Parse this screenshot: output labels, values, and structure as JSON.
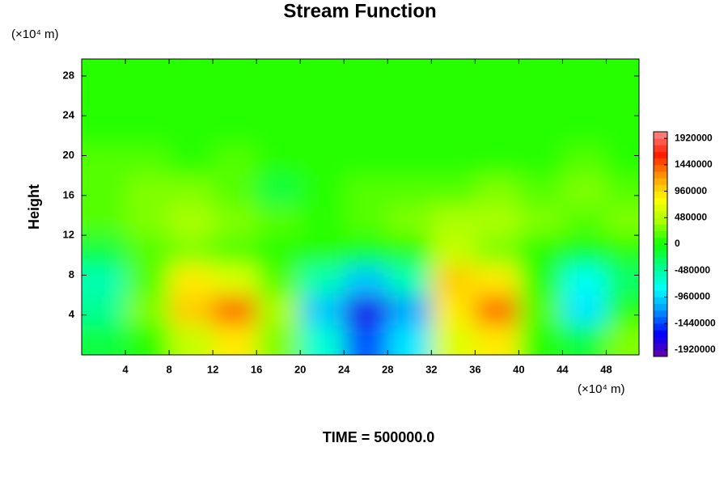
{
  "chart_data": {
    "type": "contour",
    "title": "Stream Function",
    "x_unit_label": "(×10⁴ m)",
    "y_unit_label": "(×10⁴ m)",
    "y_label": "Height",
    "footer": "TIME = 500000.0",
    "xlim": [
      0,
      51
    ],
    "ylim": [
      0,
      29.7
    ],
    "xticks": [
      4,
      8,
      12,
      16,
      20,
      24,
      28,
      32,
      36,
      40,
      44,
      48
    ],
    "yticks": [
      4,
      8,
      12,
      16,
      20,
      24,
      28
    ],
    "x": [
      2,
      6,
      10,
      14,
      18,
      22,
      26,
      30,
      34,
      38,
      42,
      46,
      50
    ],
    "y": [
      1.5,
      4.5,
      7.5,
      10.5,
      13.5,
      16.5,
      19.5,
      22.5,
      25.5,
      28.5
    ],
    "z": [
      [
        -200000,
        100000,
        500000,
        900000,
        300000,
        -700000,
        -1400000,
        -900000,
        600000,
        900000,
        100000,
        -200000,
        300000
      ],
      [
        -400000,
        300000,
        1000000,
        1400000,
        400000,
        -1000000,
        -1800000,
        -1200000,
        900000,
        1400000,
        200000,
        -900000,
        100000
      ],
      [
        -600000,
        200000,
        900000,
        600000,
        200000,
        -600000,
        -1000000,
        -600000,
        1000000,
        900000,
        100000,
        -800000,
        -300000
      ],
      [
        -200000,
        200000,
        300000,
        200000,
        100000,
        0,
        -100000,
        0,
        500000,
        300000,
        100000,
        -100000,
        0
      ],
      [
        200000,
        300000,
        400000,
        300000,
        200000,
        100000,
        200000,
        300000,
        400000,
        400000,
        300000,
        200000,
        300000
      ],
      [
        200000,
        300000,
        300000,
        200000,
        -200000,
        100000,
        200000,
        200000,
        200000,
        300000,
        200000,
        300000,
        200000
      ],
      [
        200000,
        200000,
        100000,
        200000,
        100000,
        100000,
        100000,
        100000,
        100000,
        100000,
        100000,
        200000,
        100000
      ],
      [
        0,
        0,
        0,
        0,
        0,
        0,
        0,
        0,
        0,
        0,
        0,
        0,
        0
      ],
      [
        0,
        0,
        0,
        0,
        0,
        0,
        0,
        0,
        0,
        0,
        0,
        0,
        0
      ],
      [
        0,
        0,
        0,
        0,
        0,
        0,
        0,
        0,
        0,
        0,
        0,
        0,
        0
      ]
    ],
    "clim": [
      -2040000,
      2040000
    ],
    "level_step": 120000,
    "colormap": [
      "#6a00a8",
      "#0000ff",
      "#0090ff",
      "#00ffff",
      "#00ff90",
      "#10ff00",
      "#a8ff00",
      "#ffff00",
      "#ff9c00",
      "#ff1a00",
      "#ff8a8a"
    ],
    "colorbar_ticks": [
      1920000,
      1440000,
      960000,
      480000,
      0,
      -480000,
      -960000,
      -1440000,
      -1920000
    ]
  }
}
